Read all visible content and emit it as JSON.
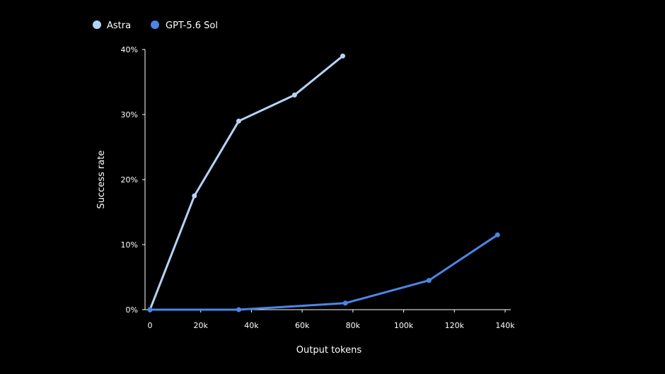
{
  "chart_data": {
    "type": "line",
    "title": "",
    "xlabel": "Output tokens",
    "ylabel": "Success rate",
    "xlim": [
      0,
      140000
    ],
    "ylim": [
      0,
      40
    ],
    "x_ticks": [
      {
        "value": 0,
        "label": "0"
      },
      {
        "value": 20000,
        "label": "20k"
      },
      {
        "value": 40000,
        "label": "40k"
      },
      {
        "value": 60000,
        "label": "60k"
      },
      {
        "value": 80000,
        "label": "80k"
      },
      {
        "value": 100000,
        "label": "100k"
      },
      {
        "value": 120000,
        "label": "120k"
      },
      {
        "value": 140000,
        "label": "140k"
      }
    ],
    "y_ticks": [
      {
        "value": 0,
        "label": "0%"
      },
      {
        "value": 10,
        "label": "10%"
      },
      {
        "value": 20,
        "label": "20%"
      },
      {
        "value": 30,
        "label": "30%"
      },
      {
        "value": 40,
        "label": "40%"
      }
    ],
    "grid": false,
    "legend_position": "top-left",
    "series": [
      {
        "name": "Astra",
        "color": "#b5d3f7",
        "points": [
          {
            "x": 0,
            "y": 0
          },
          {
            "x": 17500,
            "y": 17.5
          },
          {
            "x": 35000,
            "y": 29
          },
          {
            "x": 57000,
            "y": 33
          },
          {
            "x": 76000,
            "y": 39
          }
        ]
      },
      {
        "name": "GPT-5.6 Sol",
        "color": "#4a86e8",
        "points": [
          {
            "x": 0,
            "y": 0
          },
          {
            "x": 35000,
            "y": 0
          },
          {
            "x": 77000,
            "y": 1
          },
          {
            "x": 110000,
            "y": 4.5
          },
          {
            "x": 137000,
            "y": 11.5
          }
        ]
      }
    ]
  }
}
